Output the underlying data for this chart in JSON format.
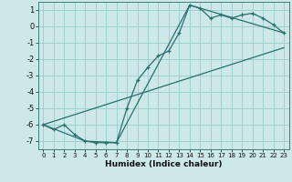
{
  "title": "",
  "xlabel": "Humidex (Indice chaleur)",
  "ylabel": "",
  "bg_color": "#cce8e8",
  "grid_color": "#99cccc",
  "line_color": "#2a6e6e",
  "xlim": [
    -0.5,
    23.5
  ],
  "ylim": [
    -7.5,
    1.5
  ],
  "yticks": [
    1,
    0,
    -1,
    -2,
    -3,
    -4,
    -5,
    -6,
    -7
  ],
  "xticks": [
    0,
    1,
    2,
    3,
    4,
    5,
    6,
    7,
    8,
    9,
    10,
    11,
    12,
    13,
    14,
    15,
    16,
    17,
    18,
    19,
    20,
    21,
    22,
    23
  ],
  "line1_x": [
    0,
    1,
    2,
    3,
    4,
    5,
    6,
    7,
    8,
    9,
    10,
    11,
    12,
    13,
    14,
    15,
    16,
    17,
    18,
    19,
    20,
    21,
    22,
    23
  ],
  "line1_y": [
    -6.0,
    -6.3,
    -6.0,
    -6.6,
    -7.0,
    -7.1,
    -7.1,
    -7.1,
    -5.0,
    -3.3,
    -2.5,
    -1.8,
    -1.5,
    -0.4,
    1.3,
    1.1,
    0.5,
    0.7,
    0.5,
    0.7,
    0.8,
    0.5,
    0.1,
    -0.4
  ],
  "line2_x": [
    0,
    4,
    7,
    14,
    23
  ],
  "line2_y": [
    -6.0,
    -7.0,
    -7.1,
    1.3,
    -0.4
  ],
  "line3_x": [
    0,
    23
  ],
  "line3_y": [
    -6.0,
    -1.3
  ]
}
